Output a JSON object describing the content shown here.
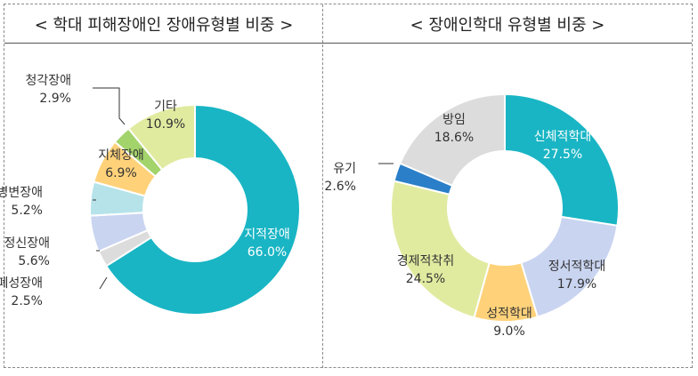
{
  "chart_data": [
    {
      "type": "pie",
      "title": "< 학대 피해장애인 장애유형별 비중 >",
      "slices": [
        {
          "label": "지적장애",
          "value": 66.0,
          "display": "66.0%",
          "color": "#19b5c4"
        },
        {
          "label": "자폐성장애",
          "value": 2.5,
          "display": "2.5%",
          "color": "#dcdcdc"
        },
        {
          "label": "정신장애",
          "value": 5.6,
          "display": "5.6%",
          "color": "#c9d4f0"
        },
        {
          "label": "뇌병변장애",
          "value": 5.2,
          "display": "5.2%",
          "color": "#b6e3ea"
        },
        {
          "label": "지체장애",
          "value": 6.9,
          "display": "6.9%",
          "color": "#ffd27a"
        },
        {
          "label": "청각장애",
          "value": 2.9,
          "display": "2.9%",
          "color": "#a3d36b"
        },
        {
          "label": "기타",
          "value": 10.9,
          "display": "10.9%",
          "color": "#e1eba0"
        }
      ]
    },
    {
      "type": "pie",
      "title": "< 장애인학대 유형별 비중 >",
      "slices": [
        {
          "label": "신체적학대",
          "value": 27.5,
          "display": "27.5%",
          "color": "#19b5c4"
        },
        {
          "label": "정서적학대",
          "value": 17.9,
          "display": "17.9%",
          "color": "#c9d4f0"
        },
        {
          "label": "성적학대",
          "value": 9.0,
          "display": "9.0%",
          "color": "#ffd27a"
        },
        {
          "label": "경제적착취",
          "value": 24.5,
          "display": "24.5%",
          "color": "#e1eba0"
        },
        {
          "label": "유기",
          "value": 2.6,
          "display": "2.6%",
          "color": "#2b7fc8"
        },
        {
          "label": "방임",
          "value": 18.6,
          "display": "18.6%",
          "color": "#dcdcdc"
        }
      ]
    }
  ]
}
